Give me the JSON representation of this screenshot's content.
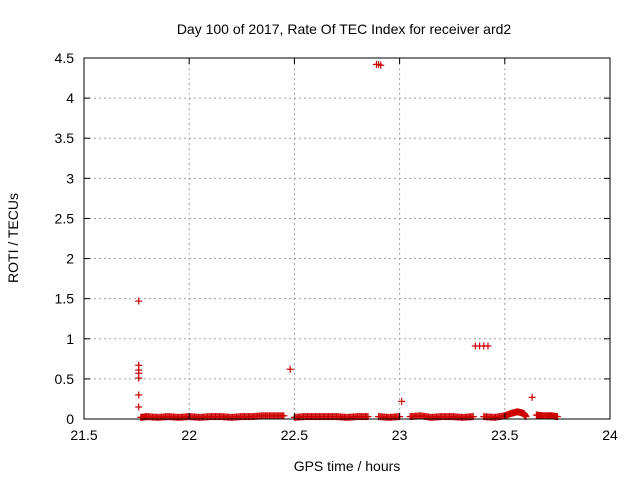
{
  "chart_data": {
    "type": "scatter",
    "title": "Day 100 of 2017, Rate Of TEC Index for receiver ard2",
    "xlabel": "GPS time / hours",
    "ylabel": "ROTI / TECUs",
    "xlim": [
      21.5,
      24
    ],
    "ylim": [
      0,
      4.5
    ],
    "xticks": [
      "21.5",
      "22",
      "22.5",
      "23",
      "23.5",
      "24"
    ],
    "yticks": [
      "0",
      "0.5",
      "1",
      "1.5",
      "2",
      "2.5",
      "3",
      "3.5",
      "4",
      "4.5"
    ],
    "grid": true,
    "marker": "+",
    "series": [
      {
        "color": "#cc0000",
        "points": [
          [
            21.76,
            1.47
          ],
          [
            21.76,
            0.67
          ],
          [
            21.76,
            0.61
          ],
          [
            21.76,
            0.57
          ],
          [
            21.76,
            0.51
          ],
          [
            21.76,
            0.3
          ],
          [
            21.76,
            0.15
          ],
          [
            21.77,
            0.02
          ],
          [
            21.8,
            0.03
          ],
          [
            21.85,
            0.02
          ],
          [
            21.9,
            0.03
          ],
          [
            21.95,
            0.02
          ],
          [
            22.0,
            0.03
          ],
          [
            22.05,
            0.02
          ],
          [
            22.1,
            0.03
          ],
          [
            22.15,
            0.03
          ],
          [
            22.2,
            0.02
          ],
          [
            22.25,
            0.03
          ],
          [
            22.3,
            0.03
          ],
          [
            22.35,
            0.04
          ],
          [
            22.4,
            0.04
          ],
          [
            22.45,
            0.04
          ],
          [
            22.48,
            0.62
          ],
          [
            22.5,
            0.02
          ],
          [
            22.55,
            0.03
          ],
          [
            22.6,
            0.03
          ],
          [
            22.65,
            0.03
          ],
          [
            22.7,
            0.03
          ],
          [
            22.75,
            0.02
          ],
          [
            22.8,
            0.03
          ],
          [
            22.85,
            0.03
          ],
          [
            22.89,
            4.42
          ],
          [
            22.9,
            4.42
          ],
          [
            22.91,
            4.41
          ],
          [
            22.9,
            0.03
          ],
          [
            22.95,
            0.02
          ],
          [
            23.0,
            0.03
          ],
          [
            23.01,
            0.22
          ],
          [
            23.05,
            0.03
          ],
          [
            23.1,
            0.04
          ],
          [
            23.15,
            0.02
          ],
          [
            23.2,
            0.03
          ],
          [
            23.25,
            0.03
          ],
          [
            23.3,
            0.02
          ],
          [
            23.35,
            0.03
          ],
          [
            23.36,
            0.91
          ],
          [
            23.38,
            0.91
          ],
          [
            23.4,
            0.91
          ],
          [
            23.42,
            0.91
          ],
          [
            23.4,
            0.03
          ],
          [
            23.45,
            0.02
          ],
          [
            23.5,
            0.04
          ],
          [
            23.53,
            0.07
          ],
          [
            23.56,
            0.09
          ],
          [
            23.59,
            0.07
          ],
          [
            23.6,
            0.03
          ],
          [
            23.63,
            0.27
          ],
          [
            23.65,
            0.05
          ],
          [
            23.68,
            0.04
          ],
          [
            23.72,
            0.04
          ],
          [
            23.75,
            0.03
          ]
        ]
      }
    ]
  }
}
